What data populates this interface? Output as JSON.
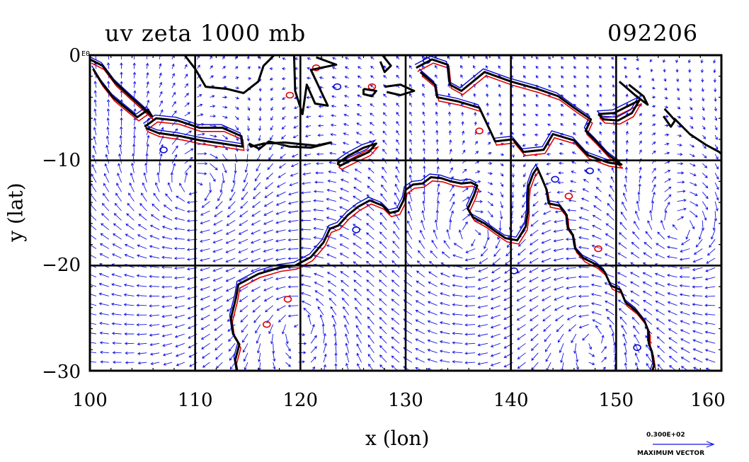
{
  "title": "uv zeta 1000 mb",
  "date_code": "092206",
  "x_axis": {
    "label": "x (lon)",
    "ticks": [
      "100",
      "110",
      "120",
      "130",
      "140",
      "150",
      "160"
    ],
    "range": [
      100,
      160
    ]
  },
  "y_axis": {
    "label": "y (lat)",
    "ticks": [
      "0",
      "−10",
      "−20",
      "−30"
    ],
    "range": [
      -30,
      0
    ],
    "exponent_label": "E0"
  },
  "reference_vector": {
    "value": "0.300E+02",
    "caption": "MAXIMUM VECTOR"
  },
  "colors": {
    "coastline": "#000000",
    "vectors": "#1414e6",
    "positive_vorticity": "#e00000",
    "negative_vorticity": "#0a0ad2"
  },
  "map_features": {
    "grid": true,
    "coastline": "black",
    "wind_arrows": "blue"
  }
}
